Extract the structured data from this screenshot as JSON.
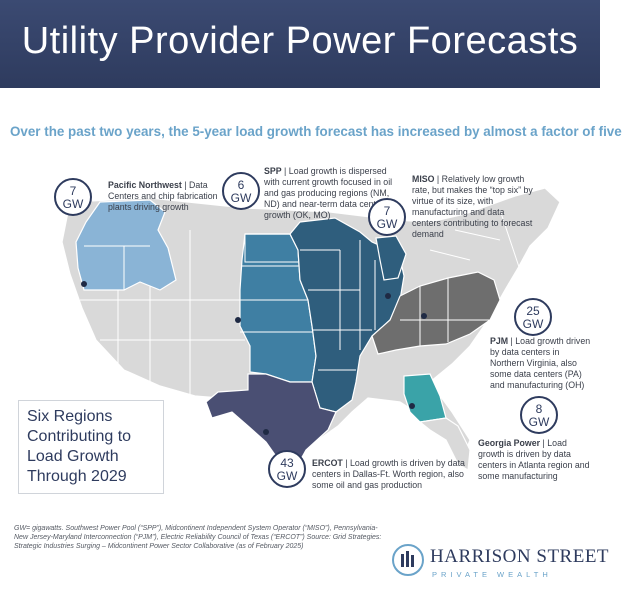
{
  "header": {
    "title": "Utility Provider Power Forecasts"
  },
  "subtitle": "Over the past two years, the 5-year load growth forecast has increased by almost a factor of five",
  "colors": {
    "header_bg": "#2e3b5e",
    "subtitle": "#6aa3c9",
    "pacific_northwest": "#8ab4d6",
    "spp": "#3f7fa3",
    "miso": "#2f5e7d",
    "pjm": "#6e6e6e",
    "ercot": "#4a4f73",
    "georgia_power": "#3aa3a8",
    "other_states": "#d9d9d9"
  },
  "regions": [
    {
      "id": "pnw",
      "gw": "7",
      "unit": "GW",
      "name": "Pacific Northwest",
      "desc": "Data Centers and chip fabrication plants driving growth"
    },
    {
      "id": "spp",
      "gw": "6",
      "unit": "GW",
      "name": "SPP",
      "desc": "Load growth is dispersed with current growth focused in oil and gas producing regions (NM, ND) and near-term data center growth  (OK, MO)"
    },
    {
      "id": "miso",
      "gw": "7",
      "unit": "GW",
      "name": "MISO",
      "desc": "Relatively low growth rate, but makes the “top six” by virtue of its size, with manufacturing and data centers contributing to forecast demand"
    },
    {
      "id": "pjm",
      "gw": "25",
      "unit": "GW",
      "name": "PJM",
      "desc": "Load growth driven by data centers in Northern Virginia, also some data centers (PA) and manufacturing (OH)"
    },
    {
      "id": "georgia",
      "gw": "8",
      "unit": "GW",
      "name": "Georgia Power",
      "desc": "Load growth is driven by data centers in Atlanta region and some manufacturing"
    },
    {
      "id": "ercot",
      "gw": "43",
      "unit": "GW",
      "name": "ERCOT",
      "desc": "Load growth is driven by data centers in Dallas-Ft. Worth region, also some oil and gas production"
    }
  ],
  "six_regions_text": "Six Regions Contributing to Load Growth Through 2029",
  "footnote_a": "GW= gigawatts. Southwest Power Pool (“SPP”), Midcontinent Independent System Operator (“MISO”), Pennsylvania-New Jersey-Maryland Interconnection (“PJM”), Electric Reliability Council of Texas (“ERCOT”)",
  "footnote_b": " Source: Grid Strategies: Strategic Industries Surging – Midcontinent Power Sector Collaborative (as of February 2025)",
  "logo": {
    "name": "HARRISON STREET",
    "sub": "PRIVATE  WEALTH"
  }
}
